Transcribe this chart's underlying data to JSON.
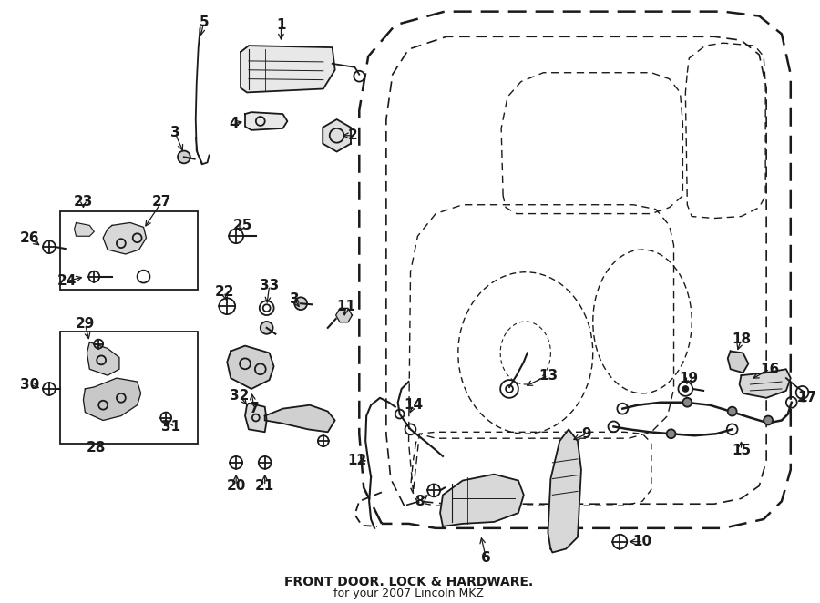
{
  "title": "FRONT DOOR. LOCK & HARDWARE.",
  "subtitle": "for your 2007 Lincoln MKZ",
  "bg_color": "#ffffff",
  "line_color": "#1a1a1a",
  "fig_width": 9.0,
  "fig_height": 6.62,
  "dpi": 100,
  "label_fontsize": 11,
  "title_fontsize": 10
}
